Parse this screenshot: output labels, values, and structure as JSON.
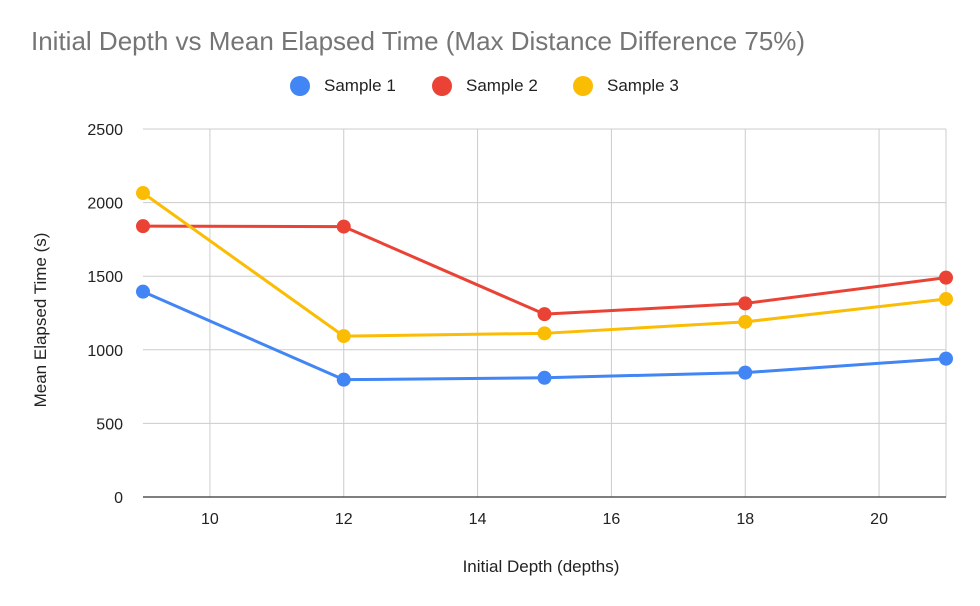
{
  "chart_data": {
    "type": "line",
    "title": "Initial Depth vs Mean Elapsed Time (Max Distance Difference 75%)",
    "xlabel": "Initial Depth (depths)",
    "ylabel": "Mean Elapsed Time (s)",
    "x": [
      9,
      12,
      15,
      18,
      21
    ],
    "xlim": [
      9,
      21
    ],
    "ylim": [
      0,
      2500
    ],
    "xticks": [
      10,
      12,
      14,
      16,
      18,
      20
    ],
    "yticks": [
      0,
      500,
      1000,
      1500,
      2000,
      2500
    ],
    "grid": true,
    "legend_position": "top",
    "series": [
      {
        "name": "Sample 1",
        "color": "#4285F4",
        "values": [
          1395,
          797,
          810,
          845,
          940
        ]
      },
      {
        "name": "Sample 2",
        "color": "#EA4335",
        "values": [
          1840,
          1837,
          1242,
          1315,
          1490
        ]
      },
      {
        "name": "Sample 3",
        "color": "#FBBC04",
        "values": [
          2065,
          1093,
          1112,
          1190,
          1345
        ]
      }
    ]
  }
}
